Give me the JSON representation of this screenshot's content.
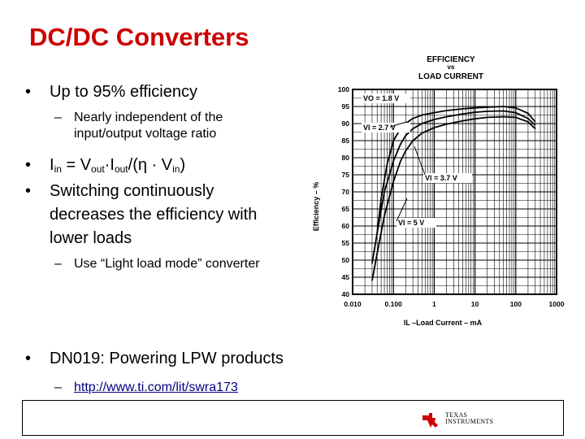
{
  "slide": {
    "title": "DC/DC Converters",
    "bullet1": "Up to 95% efficiency",
    "sub1_line1": "Nearly independent of the",
    "sub1_line2": "input/output voltage ratio",
    "bullet2": {
      "I": "I",
      "in_sub": "in",
      "eq": " = V",
      "out_sub1": "out",
      "mid": "·I",
      "out_sub2": "out",
      "tail": "/(η · V",
      "in_sub2": "in",
      "close": ")"
    },
    "bullet3_line1": "Switching continuously",
    "bullet3_line2": "decreases the efficiency with",
    "bullet3_line3": "lower loads",
    "sub3": "Use “Light load mode” converter",
    "bullet4": "DN019: Powering LPW products",
    "link": "http://www.ti.com/lit/swra173",
    "bullet_char": "•",
    "dash_char": "–"
  },
  "logo": {
    "line1": "Texas",
    "line2": "Instruments"
  },
  "chart_data": {
    "type": "line",
    "title": "EFFICIENCY vs LOAD CURRENT",
    "xlabel": "IL –Load Current – mA",
    "ylabel": "Efficiency – %",
    "x_scale": "log",
    "xlim": [
      0.01,
      1000
    ],
    "ylim": [
      40,
      100
    ],
    "x_ticks": [
      "0.010",
      "0.100",
      "1",
      "10",
      "100",
      "1000"
    ],
    "y_ticks": [
      "40",
      "45",
      "50",
      "55",
      "60",
      "65",
      "70",
      "75",
      "80",
      "85",
      "90",
      "95",
      "100"
    ],
    "grid": true,
    "annotations": {
      "vo": "VO = 1.8 V",
      "v27": "VI = 2.7 V",
      "v37": "VI = 3.7 V",
      "v5": "VI = 5 V"
    },
    "series": [
      {
        "name": "VI = 2.7 V",
        "x": [
          0.04,
          0.05,
          0.07,
          0.1,
          0.15,
          0.2,
          0.3,
          0.5,
          1,
          2,
          5,
          10,
          20,
          50,
          100,
          200,
          300
        ],
        "y": [
          58,
          68,
          78,
          85,
          88.5,
          90,
          91.5,
          92.5,
          93.2,
          93.8,
          94.3,
          94.6,
          94.8,
          95,
          94.6,
          93,
          90.5
        ]
      },
      {
        "name": "VI = 3.7 V",
        "x": [
          0.03,
          0.04,
          0.06,
          0.1,
          0.15,
          0.2,
          0.3,
          0.5,
          1,
          2,
          5,
          10,
          20,
          50,
          100,
          200,
          300
        ],
        "y": [
          49,
          58,
          70,
          79,
          84,
          86.5,
          88.5,
          90,
          91.2,
          92,
          92.8,
          93.3,
          93.6,
          93.7,
          93.2,
          91.5,
          89.5
        ]
      },
      {
        "name": "VI = 5 V",
        "x": [
          0.03,
          0.04,
          0.06,
          0.1,
          0.15,
          0.2,
          0.3,
          0.5,
          1,
          2,
          5,
          10,
          20,
          50,
          100,
          200,
          300
        ],
        "y": [
          44,
          52,
          63,
          73,
          79,
          82,
          85,
          87.2,
          88.8,
          89.8,
          90.8,
          91.4,
          91.8,
          92,
          91.8,
          90.5,
          88.5
        ]
      }
    ]
  }
}
